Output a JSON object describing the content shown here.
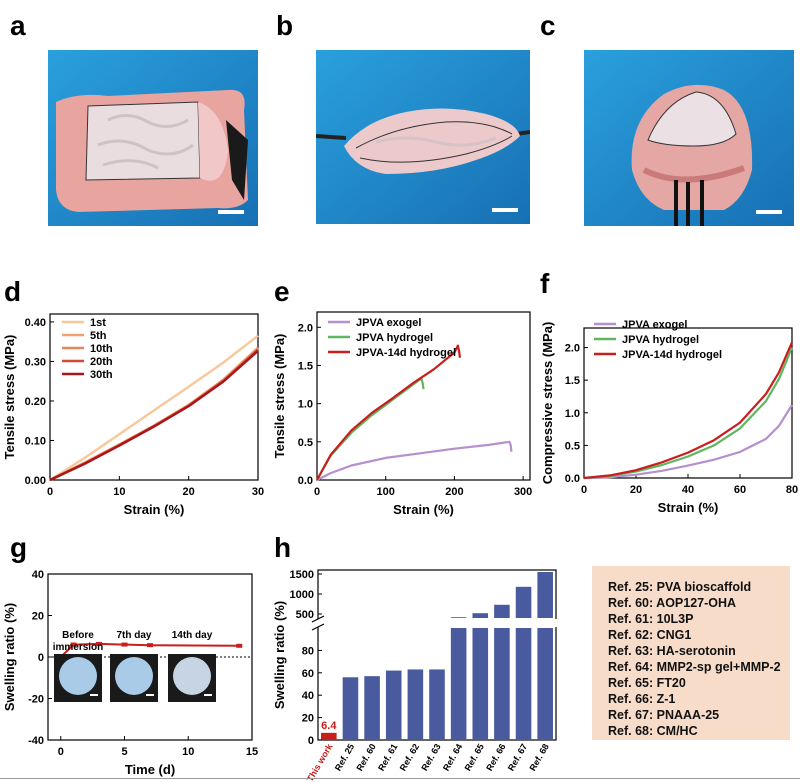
{
  "panel_labels": [
    "a",
    "b",
    "c",
    "d",
    "e",
    "f",
    "g",
    "h"
  ],
  "photos": {
    "a": {
      "description_icon": "tissue-on-blue-background"
    },
    "b": {
      "description_icon": "tissue-stretched"
    },
    "c": {
      "description_icon": "tissue-hanging"
    }
  },
  "colors": {
    "photo_bg": "#1e86c6",
    "ref_box": "#f7dcc9",
    "bar": "#4a5a9e",
    "bar_highlight": "#c81e1e",
    "exogel": "#b58fce",
    "hydrogel": "#5fb65f",
    "hydrogel14d": "#c81e1e"
  },
  "chart_data": [
    {
      "id": "d",
      "type": "line",
      "xlabel": "Strain (%)",
      "ylabel": "Tensile stress (MPa)",
      "xlim": [
        0,
        30
      ],
      "ylim": [
        0,
        0.42
      ],
      "xticks": [
        0,
        10,
        20,
        30
      ],
      "yticks": [
        0.0,
        0.1,
        0.2,
        0.3,
        0.4
      ],
      "ytick_labels": [
        "0.00",
        "0.10",
        "0.20",
        "0.30",
        "0.40"
      ],
      "legend": "top-left",
      "series": [
        {
          "name": "1st",
          "color": "#f6c89a",
          "x": [
            0,
            5,
            10,
            15,
            20,
            25,
            30
          ],
          "y": [
            0,
            0.056,
            0.116,
            0.176,
            0.236,
            0.297,
            0.365
          ]
        },
        {
          "name": "5th",
          "color": "#f0a170",
          "x": [
            0,
            5,
            10,
            15,
            20,
            25,
            30
          ],
          "y": [
            0,
            0.044,
            0.09,
            0.138,
            0.19,
            0.254,
            0.335
          ]
        },
        {
          "name": "10th",
          "color": "#e8835a",
          "x": [
            0,
            5,
            10,
            15,
            20,
            25,
            30
          ],
          "y": [
            0,
            0.043,
            0.089,
            0.137,
            0.189,
            0.252,
            0.332
          ]
        },
        {
          "name": "20th",
          "color": "#d64a35",
          "x": [
            0,
            5,
            10,
            15,
            20,
            25,
            30
          ],
          "y": [
            0,
            0.042,
            0.088,
            0.136,
            0.188,
            0.25,
            0.33
          ]
        },
        {
          "name": "30th",
          "color": "#a8161b",
          "x": [
            0,
            5,
            10,
            15,
            20,
            25,
            30
          ],
          "y": [
            0,
            0.041,
            0.087,
            0.135,
            0.187,
            0.249,
            0.327
          ]
        }
      ]
    },
    {
      "id": "e",
      "type": "line",
      "xlabel": "Strain (%)",
      "ylabel": "Tensile stress (MPa)",
      "xlim": [
        0,
        310
      ],
      "ylim": [
        0,
        2.2
      ],
      "xticks": [
        0,
        100,
        200,
        300
      ],
      "yticks": [
        0.0,
        0.5,
        1.0,
        1.5,
        2.0
      ],
      "ytick_labels": [
        "0.0",
        "0.5",
        "1.0",
        "1.5",
        "2.0"
      ],
      "legend": "top-left",
      "series": [
        {
          "name": "JPVA exogel",
          "color": "#b58fce",
          "x": [
            0,
            20,
            50,
            100,
            150,
            200,
            250,
            280,
            282,
            283
          ],
          "y": [
            0,
            0.09,
            0.19,
            0.29,
            0.35,
            0.41,
            0.46,
            0.5,
            0.45,
            0.37
          ]
        },
        {
          "name": "JPVA hydrogel",
          "color": "#5fb65f",
          "x": [
            0,
            20,
            50,
            80,
            110,
            140,
            152,
            154,
            155
          ],
          "y": [
            0,
            0.32,
            0.62,
            0.85,
            1.05,
            1.25,
            1.33,
            1.26,
            1.19
          ]
        },
        {
          "name": "JPVA-14d hydrogel",
          "color": "#c81e1e",
          "x": [
            0,
            20,
            50,
            80,
            110,
            140,
            170,
            200,
            205,
            207,
            208
          ],
          "y": [
            0,
            0.33,
            0.65,
            0.88,
            1.07,
            1.27,
            1.45,
            1.67,
            1.76,
            1.68,
            1.6
          ]
        }
      ]
    },
    {
      "id": "f",
      "type": "line",
      "xlabel": "Strain (%)",
      "ylabel": "Compressive stress (MPa)",
      "xlim": [
        0,
        80
      ],
      "ylim": [
        0,
        2.3
      ],
      "xticks": [
        0,
        20,
        40,
        60,
        80
      ],
      "yticks": [
        0.0,
        0.5,
        1.0,
        1.5,
        2.0
      ],
      "ytick_labels": [
        "0.0",
        "0.5",
        "1.0",
        "1.5",
        "2.0"
      ],
      "legend": "top-left",
      "series": [
        {
          "name": "JPVA exogel",
          "color": "#b58fce",
          "x": [
            0,
            10,
            20,
            30,
            40,
            50,
            60,
            70,
            75,
            80
          ],
          "y": [
            0,
            0.01,
            0.05,
            0.11,
            0.19,
            0.28,
            0.4,
            0.6,
            0.8,
            1.12
          ]
        },
        {
          "name": "JPVA hydrogel",
          "color": "#5fb65f",
          "x": [
            0,
            10,
            20,
            30,
            40,
            50,
            60,
            70,
            75,
            80
          ],
          "y": [
            0,
            0.03,
            0.1,
            0.2,
            0.33,
            0.5,
            0.76,
            1.18,
            1.52,
            2.0
          ]
        },
        {
          "name": "JPVA-14d hydrogel",
          "color": "#c81e1e",
          "x": [
            0,
            10,
            20,
            30,
            40,
            50,
            60,
            70,
            75,
            80
          ],
          "y": [
            0,
            0.04,
            0.12,
            0.24,
            0.39,
            0.58,
            0.85,
            1.29,
            1.62,
            2.08
          ]
        }
      ]
    },
    {
      "id": "g",
      "type": "line",
      "xlabel": "Time (d)",
      "ylabel": "Swelling ratio (%)",
      "xlim": [
        -1,
        15
      ],
      "ylim": [
        -40,
        40
      ],
      "xticks": [
        0,
        5,
        10,
        15
      ],
      "yticks": [
        -40,
        -20,
        0,
        20,
        40
      ],
      "ytick_labels": [
        "-40",
        "-20",
        "0",
        "20",
        "40"
      ],
      "series": [
        {
          "name": "Swelling ratio",
          "color": "#c81e1e",
          "x": [
            0,
            1,
            3,
            5,
            7,
            14
          ],
          "y": [
            0,
            6.0,
            6.3,
            6.0,
            5.7,
            5.4
          ]
        }
      ],
      "inset": {
        "labels": [
          "Before immersion",
          "7th day",
          "14th day"
        ]
      }
    },
    {
      "id": "h",
      "type": "bar",
      "ylabel": "Swelling ratio (%)",
      "broken_axis": true,
      "lower_ylim": [
        0,
        100
      ],
      "upper_ylim": [
        400,
        1600
      ],
      "lower_yticks": [
        0,
        20,
        40,
        60,
        80
      ],
      "upper_yticks": [
        500,
        1000,
        1500
      ],
      "categories": [
        "This work",
        "Ref. 25",
        "Ref. 60",
        "Ref. 61",
        "Ref. 62",
        "Ref. 63",
        "Ref. 64",
        "Ref. 65",
        "Ref. 66",
        "Ref. 67",
        "Ref. 68"
      ],
      "values": [
        6.4,
        56,
        57,
        62,
        63,
        63,
        420,
        520,
        730,
        1180,
        1550
      ],
      "annotation": "6.4",
      "highlight_index": 0
    }
  ],
  "references": [
    "Ref. 25: PVA bioscaffold",
    "Ref. 60: AOP127-OHA",
    "Ref. 61: 10L3P",
    "Ref. 62: CNG1",
    "Ref. 63: HA-serotonin",
    "Ref. 64: MMP2-sp gel+MMP-2",
    "Ref. 65: FT20",
    "Ref. 66: Z-1",
    "Ref. 67: PNAAA-25",
    "Ref. 68: CM/HC"
  ]
}
